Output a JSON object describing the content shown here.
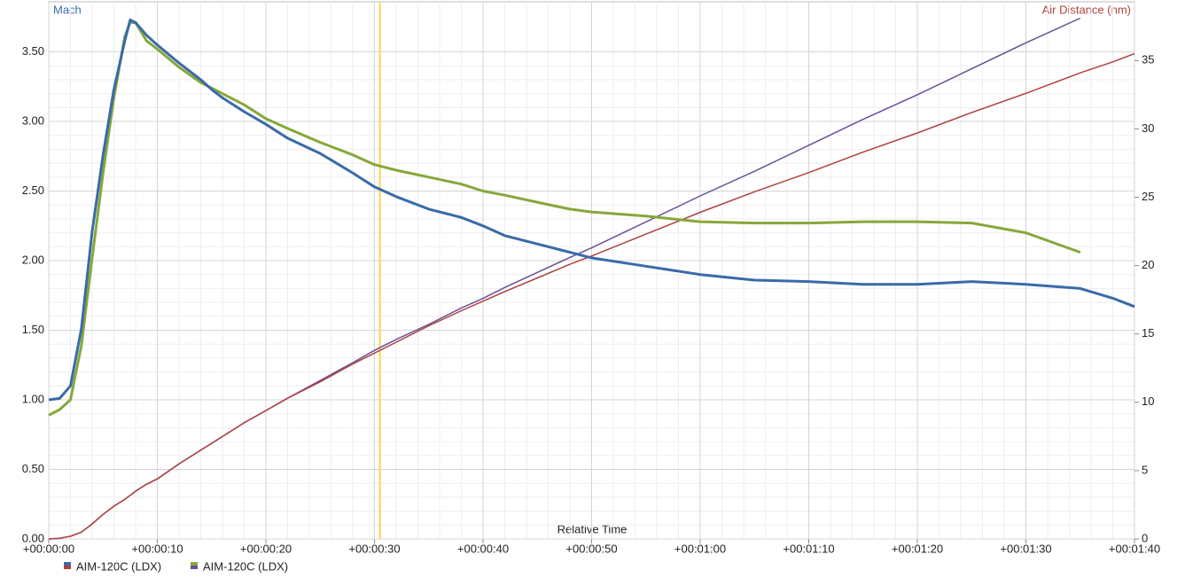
{
  "chart_data": {
    "type": "line",
    "y_label": "Mach",
    "y2_label": "Air Distance (nm)",
    "x_label": "Relative Time",
    "x": [
      0,
      1,
      2,
      3,
      4,
      5,
      6,
      7,
      7.5,
      8,
      9,
      10,
      12,
      14,
      15,
      16,
      18,
      20,
      22,
      25,
      28,
      30,
      32,
      35,
      38,
      40,
      42,
      45,
      48,
      50,
      55,
      60,
      65,
      70,
      75,
      80,
      85,
      90,
      95,
      98,
      100
    ],
    "xlim": [
      0,
      100
    ],
    "xticks": [
      {
        "value": 0,
        "label": "+00:00:00"
      },
      {
        "value": 10,
        "label": "+00:00:10"
      },
      {
        "value": 20,
        "label": "+00:00:20"
      },
      {
        "value": 30,
        "label": "+00:00:30"
      },
      {
        "value": 40,
        "label": "+00:00:40"
      },
      {
        "value": 50,
        "label": "+00:00:50"
      },
      {
        "value": 60,
        "label": "+00:01:00"
      },
      {
        "value": 70,
        "label": "+00:01:10"
      },
      {
        "value": 80,
        "label": "+00:01:20"
      },
      {
        "value": 90,
        "label": "+00:01:30"
      },
      {
        "value": 100,
        "label": "+00:01:40"
      }
    ],
    "ylim": [
      0,
      3.86
    ],
    "yticks": [
      {
        "value": 0,
        "label": "0.00"
      },
      {
        "value": 0.5,
        "label": "0.50"
      },
      {
        "value": 1,
        "label": "1.00"
      },
      {
        "value": 1.5,
        "label": "1.50"
      },
      {
        "value": 2,
        "label": "2.00"
      },
      {
        "value": 2.5,
        "label": "2.50"
      },
      {
        "value": 3,
        "label": "3.00"
      },
      {
        "value": 3.5,
        "label": "3.50"
      }
    ],
    "y2lim": [
      0,
      39.3
    ],
    "y2ticks": [
      0,
      5,
      10,
      15,
      20,
      25,
      30,
      35
    ],
    "grid": true,
    "cursor": 30.5,
    "series": [
      {
        "color": "#3a6aa8",
        "values": [
          1.0,
          1.01,
          1.1,
          1.51,
          2.21,
          2.76,
          3.23,
          3.58,
          3.73,
          3.71,
          3.62,
          3.55,
          3.42,
          3.3,
          3.23,
          3.17,
          3.07,
          2.98,
          2.88,
          2.77,
          2.63,
          2.53,
          2.46,
          2.37,
          2.31,
          2.25,
          2.18,
          2.12,
          2.06,
          2.02,
          1.96,
          1.9,
          1.86,
          1.85,
          1.83,
          1.83,
          1.85,
          1.83,
          1.8,
          1.73,
          1.67
        ]
      },
      {
        "color": "#85a83a",
        "values": [
          0.89,
          0.93,
          1.0,
          1.39,
          2.02,
          2.63,
          3.17,
          3.61,
          3.71,
          3.71,
          3.58,
          3.52,
          3.39,
          3.28,
          3.24,
          3.2,
          3.12,
          3.02,
          2.95,
          2.85,
          2.76,
          2.69,
          2.65,
          2.6,
          2.55,
          2.5,
          2.47,
          2.42,
          2.37,
          2.35,
          2.32,
          2.28,
          2.27,
          2.27,
          2.28,
          2.28,
          2.27,
          2.2,
          2.06,
          null,
          null
        ]
      },
      {
        "name": "AIM-120C (LDX)",
        "axis": "y2",
        "color": "#b04040",
        "values": [
          0,
          0.05,
          0.2,
          0.5,
          1.1,
          1.8,
          2.4,
          2.9,
          3.2,
          3.5,
          4.0,
          4.4,
          5.5,
          6.5,
          7.0,
          7.5,
          8.5,
          9.4,
          10.3,
          11.5,
          12.8,
          13.6,
          14.4,
          15.6,
          16.7,
          17.4,
          18.1,
          19.1,
          20.1,
          20.7,
          22.3,
          23.9,
          25.4,
          26.8,
          28.3,
          29.7,
          31.2,
          32.6,
          34.1,
          34.9,
          35.5
        ]
      },
      {
        "name": "AIM-120C (LDX)",
        "axis": "y2",
        "color": "#6a4f9a",
        "values": [
          0,
          0.05,
          0.2,
          0.5,
          1.1,
          1.8,
          2.4,
          2.9,
          3.2,
          3.5,
          4.0,
          4.4,
          5.5,
          6.5,
          7.0,
          7.5,
          8.5,
          9.4,
          10.3,
          11.6,
          12.9,
          13.8,
          14.6,
          15.7,
          16.9,
          17.6,
          18.4,
          19.5,
          20.6,
          21.3,
          23.2,
          25.1,
          26.9,
          28.8,
          30.7,
          32.5,
          34.4,
          36.3,
          38.1,
          null,
          null
        ]
      }
    ]
  }
}
